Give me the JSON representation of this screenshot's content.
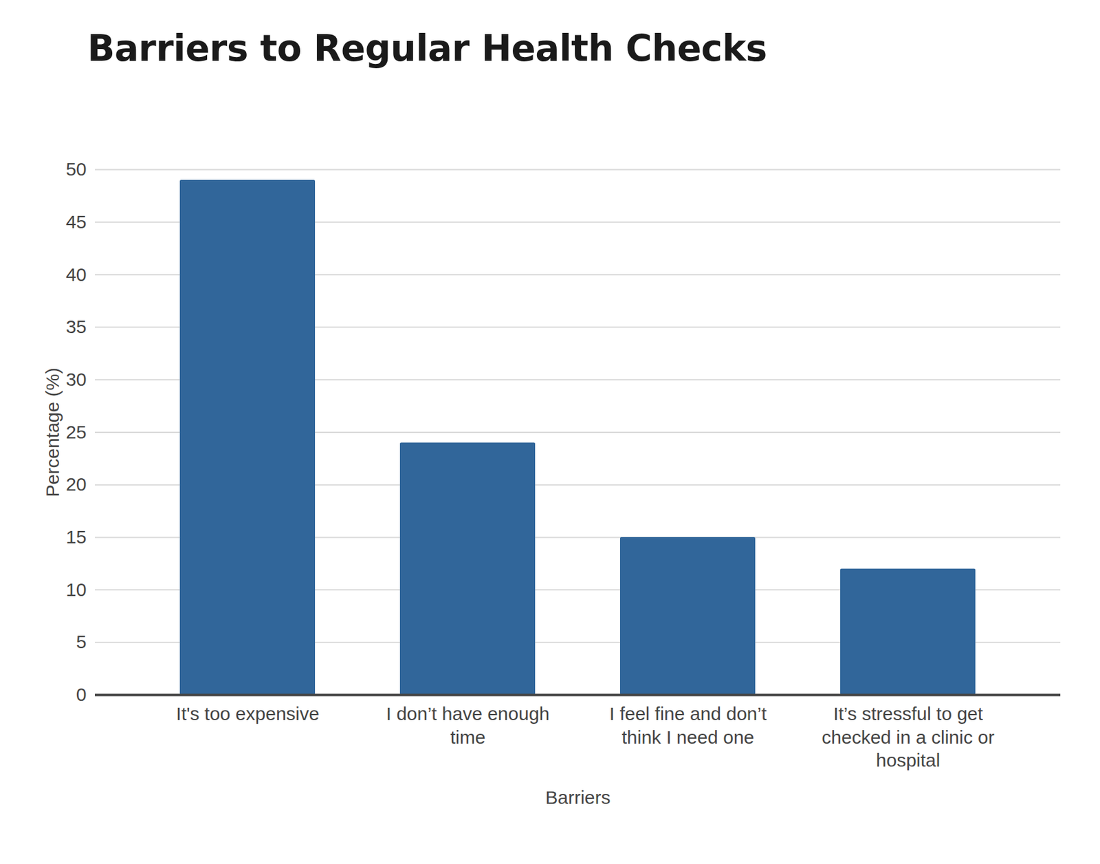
{
  "chart_data": {
    "type": "bar",
    "title": "Barriers to Regular Health Checks",
    "x_label": "Barriers",
    "y_label": "Percentage (%)",
    "categories": [
      "It's too expensive",
      "I don’t have enough time",
      "I feel fine and don’t think I need one",
      "It’s stressful to get checked in a clinic or hospital"
    ],
    "values": [
      49,
      24,
      15,
      12
    ],
    "color": "#31669a",
    "ylim": [
      0,
      50
    ],
    "yticks": [
      0,
      5,
      10,
      15,
      20,
      25,
      30,
      35,
      40,
      45,
      50
    ],
    "grid": true
  }
}
